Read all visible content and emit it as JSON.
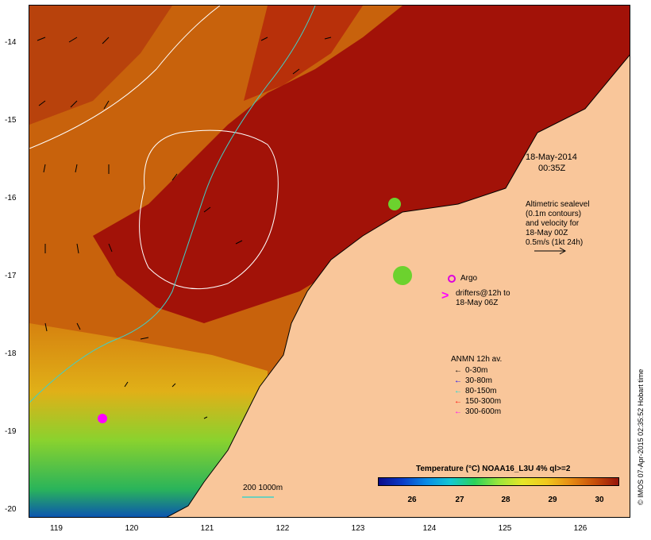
{
  "map": {
    "timestamp_line1": "18-May-2014",
    "timestamp_line2": "00:35Z",
    "altimetry_note": [
      "Altimetric sealevel",
      "(0.1m contours)",
      "and velocity for",
      "18-May 00Z",
      "0.5m/s (1kt 24h)"
    ],
    "argo_label": "Argo",
    "drifters_line1": "drifters@12h to",
    "drifters_line2": "18-May 06Z",
    "drifter_symbol": ">",
    "anmn_title": "ANMN 12h av.",
    "anmn_legend": [
      {
        "label": "0-30m",
        "color": "#000000"
      },
      {
        "label": "30-80m",
        "color": "#0000ff"
      },
      {
        "label": "80-150m",
        "color": "#00e0e0"
      },
      {
        "label": "150-300m",
        "color": "#ff0000"
      },
      {
        "label": "300-600m",
        "color": "#ff00ff"
      }
    ],
    "isobath_label": "200  1000m",
    "colorbar_title": "Temperature (°C) NOAA16_L3U 4% ql>=2",
    "colorbar_ticks": [
      "26",
      "27",
      "28",
      "29",
      "30"
    ],
    "lat_labels": [
      "-14",
      "-15",
      "-16",
      "-17",
      "-18",
      "-19",
      "-20"
    ],
    "lon_labels": [
      "119",
      "120",
      "121",
      "122",
      "123",
      "124",
      "125",
      "126"
    ],
    "credit": "© IMOS 07-Apr-2015 02:35:52 Hobart time",
    "colors": {
      "land": "#f9c69a",
      "sea_hot": "#9c0a06",
      "sea_warm": "#d2780f",
      "sea_cool": "#6cd22e",
      "argo": "#dd00dd",
      "drifter": "#ff00ff",
      "isobath": "#40d0c8"
    }
  }
}
